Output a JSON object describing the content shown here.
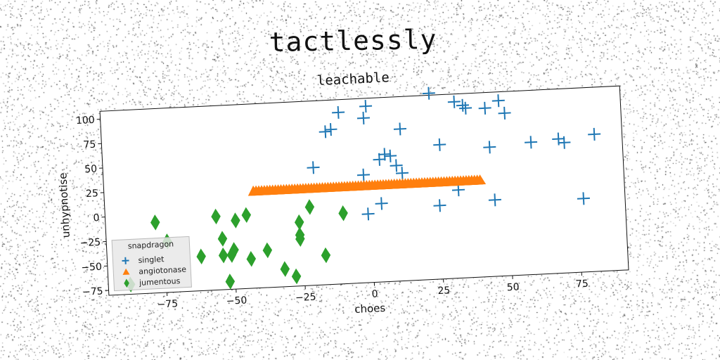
{
  "page": {
    "title": "tactlessly"
  },
  "chart_data": {
    "type": "scatter",
    "title": "leachable",
    "xlabel": "choes",
    "ylabel": "unhypnotise",
    "xlim": [
      -96,
      92
    ],
    "ylim": [
      -80,
      108
    ],
    "xticks": [
      -75,
      -50,
      -25,
      0,
      25,
      50,
      75
    ],
    "yticks": [
      -75,
      -50,
      -25,
      0,
      25,
      50,
      75,
      100
    ],
    "grid": false,
    "legend": {
      "title": "snapdragon",
      "placement": "lower-left"
    },
    "series": [
      {
        "name": "singlet",
        "marker": "plus",
        "color": "#1f77b4",
        "points": [
          [
            -15,
            76
          ],
          [
            -13,
            78
          ],
          [
            -10,
            95
          ],
          [
            -1,
            88
          ],
          [
            0,
            100
          ],
          [
            -2,
            30
          ],
          [
            -1,
            -10
          ],
          [
            4,
            45
          ],
          [
            6,
            50
          ],
          [
            8,
            48
          ],
          [
            10,
            38
          ],
          [
            12,
            30
          ],
          [
            12,
            75
          ],
          [
            4,
            0
          ],
          [
            -20,
            40
          ],
          [
            23,
            110
          ],
          [
            26,
            57
          ],
          [
            25,
            -5
          ],
          [
            32,
            100
          ],
          [
            35,
            96
          ],
          [
            36,
            93
          ],
          [
            43,
            92
          ],
          [
            44,
            52
          ],
          [
            48,
            99
          ],
          [
            50,
            86
          ],
          [
            59,
            55
          ],
          [
            69,
            57
          ],
          [
            71,
            53
          ],
          [
            82,
            60
          ],
          [
            77,
            -5
          ],
          [
            45,
            -2
          ],
          [
            32,
            10
          ]
        ]
      },
      {
        "name": "angiotonase",
        "marker": "triangle",
        "color": "#ff7f0e",
        "points": [
          [
            -42,
            19
          ],
          [
            -41,
            19
          ],
          [
            -40,
            19
          ],
          [
            -39,
            19
          ],
          [
            -38,
            19
          ],
          [
            -37,
            19
          ],
          [
            -36,
            19
          ],
          [
            -35,
            19
          ],
          [
            -34,
            19
          ],
          [
            -33,
            19
          ],
          [
            -32,
            19
          ],
          [
            -31,
            19
          ],
          [
            -30,
            19
          ],
          [
            -29,
            19
          ],
          [
            -28,
            19
          ],
          [
            -27,
            19
          ],
          [
            -26,
            19
          ],
          [
            -25,
            19
          ],
          [
            -24,
            19
          ],
          [
            -23,
            19
          ],
          [
            -22,
            19
          ],
          [
            -21,
            19
          ],
          [
            -20,
            19
          ],
          [
            -19,
            19
          ],
          [
            -18,
            19
          ],
          [
            -17,
            19
          ],
          [
            -16,
            19
          ],
          [
            -15,
            19
          ],
          [
            -14,
            19
          ],
          [
            -13,
            19
          ],
          [
            -12,
            19
          ],
          [
            -11,
            19
          ],
          [
            -10,
            19
          ],
          [
            -9,
            19
          ],
          [
            -8,
            19
          ],
          [
            -7,
            19
          ],
          [
            -6,
            19
          ],
          [
            -5,
            19
          ],
          [
            -4,
            19
          ],
          [
            -3,
            19
          ],
          [
            -2,
            19
          ],
          [
            -1,
            19
          ],
          [
            0,
            19
          ],
          [
            1,
            19
          ],
          [
            2,
            19
          ],
          [
            3,
            19
          ],
          [
            4,
            19
          ],
          [
            5,
            19
          ],
          [
            6,
            19
          ],
          [
            7,
            19
          ],
          [
            8,
            19
          ],
          [
            9,
            19
          ],
          [
            10,
            19
          ],
          [
            11,
            19
          ],
          [
            12,
            19
          ],
          [
            13,
            19
          ],
          [
            14,
            19
          ],
          [
            15,
            19
          ],
          [
            16,
            19
          ],
          [
            17,
            19
          ],
          [
            18,
            19
          ],
          [
            19,
            19
          ],
          [
            20,
            19
          ],
          [
            21,
            19
          ],
          [
            22,
            19
          ],
          [
            23,
            19
          ],
          [
            24,
            19
          ],
          [
            25,
            19
          ],
          [
            26,
            19
          ],
          [
            27,
            19
          ],
          [
            28,
            19
          ],
          [
            29,
            19
          ],
          [
            30,
            19
          ],
          [
            31,
            19
          ],
          [
            32,
            19
          ],
          [
            33,
            19
          ],
          [
            34,
            19
          ],
          [
            35,
            19
          ],
          [
            36,
            19
          ],
          [
            37,
            19
          ],
          [
            38,
            19
          ],
          [
            39,
            19
          ],
          [
            40,
            19
          ]
        ]
      },
      {
        "name": "jumentous",
        "marker": "diamond",
        "color": "#2ca02c",
        "points": [
          [
            -78,
            -8
          ],
          [
            -74,
            -28
          ],
          [
            -62,
            -45
          ],
          [
            -56,
            -5
          ],
          [
            -54,
            -28
          ],
          [
            -54,
            -45
          ],
          [
            -51,
            -45
          ],
          [
            -50,
            -40
          ],
          [
            -49,
            -10
          ],
          [
            -45,
            -5
          ],
          [
            -44,
            -50
          ],
          [
            -38,
            -42
          ],
          [
            -32,
            -62
          ],
          [
            -28,
            -70
          ],
          [
            -26,
            -15
          ],
          [
            -26,
            -28
          ],
          [
            -26,
            -32
          ],
          [
            -22,
            0
          ],
          [
            -17,
            -50
          ],
          [
            -10,
            -8
          ],
          [
            -52,
            -72
          ],
          [
            -88,
            -70
          ]
        ]
      }
    ]
  }
}
